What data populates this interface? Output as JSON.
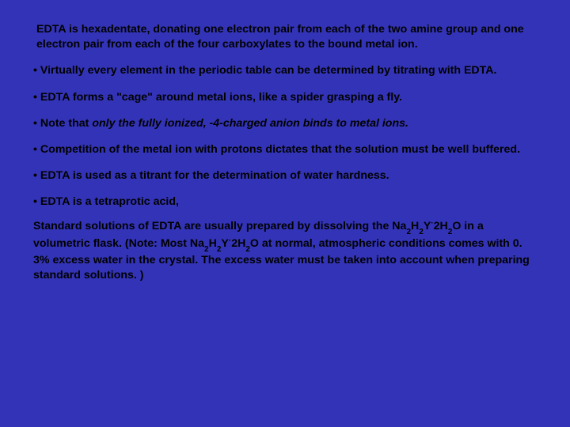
{
  "intro": "EDTA is hexadentate, donating one electron pair from each of the two amine group and one electron pair from each of the four carboxylates to the bound metal ion.",
  "b1": "• Virtually every element in the periodic table can be determined by titrating with EDTA.",
  "b2": "• EDTA forms a \"cage\" around metal ions, like a spider grasping a fly.",
  "b3_pre": "• Note that ",
  "b3_emph": "only the fully ionized, -4-charged anion binds to metal ions.",
  "b4": " • Competition of the metal ion with protons dictates that the solution must be well buffered.",
  "b5": "• EDTA is used as a titrant for the determination of water hardness.",
  "b6": "• EDTA is a tetraprotic acid,",
  "std_a": "Standard solutions of EDTA are usually prepared by dissolving the Na",
  "std_b": "H",
  "std_c": "Y",
  "std_d": "2H",
  "std_e": "O in a volumetric flask. (Note: Most Na",
  "std_f": "O at normal, atmospheric conditions comes with 0. 3% excess water in the crystal. The excess water must be taken into account when preparing standard solutions. )",
  "s2": "2",
  "dot": "·",
  "text_color": "#000000",
  "background_color": "#3333b7",
  "font_size_pt": 11,
  "font_weight": "bold"
}
